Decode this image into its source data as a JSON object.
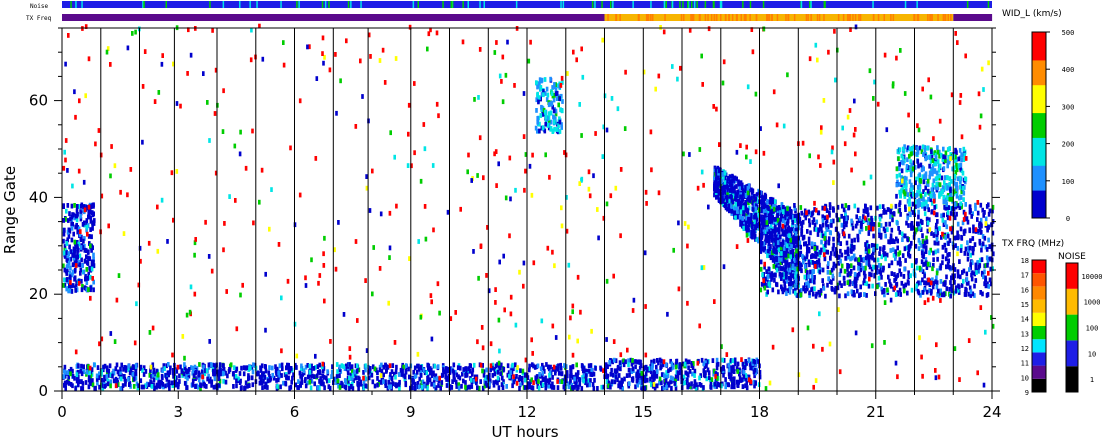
{
  "chart_data": {
    "type": "heatmap",
    "xlabel": "UT hours",
    "ylabel": "Range Gate",
    "xlim": [
      0,
      24
    ],
    "ylim": [
      0,
      75
    ],
    "x_ticks": [
      0,
      3,
      6,
      9,
      12,
      15,
      18,
      21,
      24
    ],
    "x_tick_labels": [
      "0",
      "3",
      "6",
      "9",
      "12",
      "15",
      "18",
      "21",
      "24"
    ],
    "y_ticks": [
      0,
      20,
      40,
      60
    ],
    "y_tick_labels": [
      "0",
      "20",
      "40",
      "60"
    ],
    "scan_boundaries_hours": [
      1,
      2,
      2.9,
      4,
      5,
      6,
      7,
      7.9,
      9,
      10,
      11,
      12,
      13,
      14,
      15,
      16,
      17,
      18,
      19,
      20,
      21,
      22,
      23
    ],
    "top_strips": [
      {
        "label": "Noise",
        "dominant_color": "#1e1ee6",
        "color_segments": []
      },
      {
        "label": "TX Freq",
        "color_segments": [
          {
            "start": 0,
            "end": 14,
            "color": "#5a0a8c"
          },
          {
            "start": 14,
            "end": 23,
            "color": "#f7b500"
          },
          {
            "start": 23,
            "end": 24,
            "color": "#5a0a8c"
          }
        ]
      }
    ],
    "regions": [
      {
        "name": "dense ground-scatter band",
        "x_range": [
          0,
          14
        ],
        "gate_range": [
          0,
          5
        ],
        "color": "#1e1ee6"
      },
      {
        "name": "ground-scatter band",
        "x_range": [
          14,
          18
        ],
        "gate_range": [
          0,
          6
        ],
        "color": "#1e1ee6"
      },
      {
        "name": "early echo patch",
        "x_range": [
          0,
          0.8
        ],
        "gate_range": [
          20,
          38
        ],
        "color": "#1e1ee6"
      },
      {
        "name": "gate 3-4 strip",
        "x_range": [
          2.8,
          4.3
        ],
        "gate_range": [
          3,
          4
        ],
        "color": "#1e1ee6"
      },
      {
        "name": "slanted ionospheric echo",
        "x_range": [
          16.8,
          19
        ],
        "gate_range": [
          22,
          46
        ],
        "color": "#1e1ee6"
      },
      {
        "name": "broad ionospheric echo",
        "x_range": [
          18,
          24
        ],
        "gate_range": [
          19,
          38
        ],
        "color": "#1e1ee6"
      },
      {
        "name": "upper echo patch",
        "x_range": [
          21.5,
          23.3
        ],
        "gate_range": [
          38,
          50
        ],
        "color": "#1e90ff"
      },
      {
        "name": "gate 55-63 patch",
        "x_range": [
          12.2,
          12.9
        ],
        "gate_range": [
          53,
          64
        ],
        "color": "#1e90ff"
      }
    ],
    "colorbars": [
      {
        "title": "WID_L (km/s)",
        "range": [
          0,
          500
        ],
        "ticks": [
          "0",
          "100",
          "200",
          "300",
          "400",
          "500"
        ],
        "colors": [
          "#0000cd",
          "#1e90ff",
          "#00e5e5",
          "#00cd00",
          "#ffff00",
          "#ff8c00",
          "#ff0000"
        ]
      },
      {
        "title": "TX FRQ (MHz)",
        "range": [
          9,
          18
        ],
        "ticks": [
          "9",
          "10",
          "11",
          "12",
          "13",
          "14",
          "15",
          "16",
          "17",
          "18"
        ],
        "colors": [
          "#000000",
          "#5a0a8c",
          "#1e1ee6",
          "#00e5ff",
          "#00cd00",
          "#ffff00",
          "#ffbb00",
          "#ff8800",
          "#ff5500",
          "#ff0000"
        ]
      },
      {
        "title": "NOISE",
        "ticks": [
          "1",
          "10",
          "100",
          "1000",
          "10000"
        ],
        "colors": [
          "#000000",
          "#1e1ee6",
          "#00cd00",
          "#ffbb00",
          "#ff0000"
        ]
      }
    ]
  }
}
